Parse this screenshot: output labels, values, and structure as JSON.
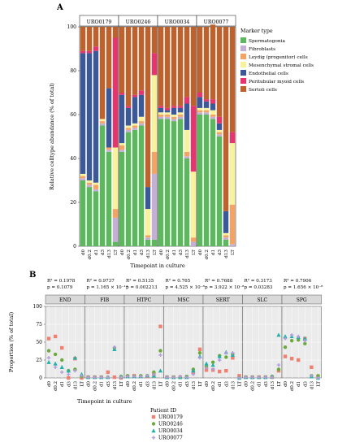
{
  "panel_a_label": "A",
  "panel_b_label": "B",
  "chart_data": [
    {
      "type": "stacked-bar",
      "xlabel": "Timepoint in culture",
      "ylabel": "Relative celltype abundance (% of total)",
      "ylim": [
        0,
        100
      ],
      "yticks": [
        "0",
        "20",
        "40",
        "60",
        "80",
        "100"
      ],
      "legend_title": "Marker type",
      "legend_position": "right",
      "facets": [
        "URO0179",
        "URO0246",
        "URO0034",
        "URO0077"
      ],
      "categories": [
        "d0",
        "d0.2",
        "d1",
        "d3",
        "d13",
        "LT"
      ],
      "series": [
        {
          "name": "Spermatogonia",
          "color": "#5cb85c",
          "values": [
            [
              30,
              27,
              25,
              55,
              43,
              2
            ],
            [
              43,
              52,
              53,
              55,
              3,
              3
            ],
            [
              58,
              58,
              57,
              58,
              40,
              0
            ],
            [
              60,
              60,
              58,
              50,
              3,
              0
            ]
          ]
        },
        {
          "name": "Fibroblasts",
          "color": "#c5b0d5",
          "values": [
            [
              1,
              1,
              1,
              1,
              1,
              11
            ],
            [
              1,
              1,
              1,
              1,
              1,
              30
            ],
            [
              1,
              1,
              1,
              1,
              1,
              2
            ],
            [
              1,
              1,
              1,
              1,
              1,
              1
            ]
          ]
        },
        {
          "name": "Leydig (progenitor) cells",
          "color": "#f4a460",
          "values": [
            [
              1,
              1,
              2,
              1,
              1,
              4
            ],
            [
              2,
              1,
              1,
              1,
              1,
              10
            ],
            [
              1,
              1,
              1,
              1,
              2,
              2
            ],
            [
              1,
              1,
              1,
              1,
              1,
              18
            ]
          ]
        },
        {
          "name": "Mesenchymal stromal cells",
          "color": "#f8f39a",
          "values": [
            [
              1,
              1,
              1,
              1,
              0,
              28
            ],
            [
              1,
              1,
              1,
              2,
              12,
              35
            ],
            [
              1,
              1,
              1,
              1,
              10,
              30
            ],
            [
              1,
              1,
              2,
              1,
              1,
              28
            ]
          ]
        },
        {
          "name": "Endothelial cells",
          "color": "#3b5998",
          "values": [
            [
              55,
              58,
              60,
              0,
              27,
              0
            ],
            [
              22,
              8,
              12,
              10,
              10,
              0
            ],
            [
              2,
              1,
              3,
              2,
              12,
              0
            ],
            [
              5,
              3,
              3,
              3,
              10,
              0
            ]
          ]
        },
        {
          "name": "Peritubular myoid cells",
          "color": "#e8336d",
          "values": [
            [
              1,
              1,
              2,
              0,
              0,
              50
            ],
            [
              1,
              1,
              1,
              2,
              0,
              10
            ],
            [
              1,
              1,
              1,
              1,
              3,
              30
            ],
            [
              2,
              1,
              2,
              3,
              0,
              5
            ]
          ]
        },
        {
          "name": "Sertoli cells",
          "color": "#c0612b",
          "values": [
            [
              11,
              11,
              9,
              42,
              28,
              5
            ],
            [
              30,
              36,
              31,
              29,
              73,
              12
            ],
            [
              36,
              37,
              36,
              36,
              32,
              36
            ],
            [
              30,
              33,
              34,
              41,
              84,
              48
            ]
          ]
        }
      ]
    },
    {
      "type": "scatter",
      "xlabel": "Timepoint in culture",
      "ylabel": "Proportion (% of total)",
      "ylim": [
        0,
        100
      ],
      "yticks": [
        "0",
        "25",
        "50",
        "75",
        "100"
      ],
      "categories": [
        "d0",
        "d0.2",
        "d1",
        "d3",
        "d13",
        "LT"
      ],
      "legend_title": "Patient ID",
      "legend_position": "bottom",
      "patients": [
        {
          "name": "URO0179",
          "color": "#f08070",
          "shape": "square"
        },
        {
          "name": "URO0246",
          "color": "#6aaa3a",
          "shape": "circle"
        },
        {
          "name": "URO0034",
          "color": "#20b2aa",
          "shape": "triangle"
        },
        {
          "name": "URO0077",
          "color": "#b39ddb",
          "shape": "cross"
        }
      ],
      "facets": [
        {
          "name": "END",
          "r2": "R² = 0.1978",
          "p": "p = 0.1079",
          "values": [
            [
              55,
              58,
              42,
              0,
              27,
              0
            ],
            [
              38,
              33,
              25,
              10,
              12,
              2
            ],
            [
              22,
              20,
              15,
              10,
              28,
              5
            ],
            [
              28,
              15,
              8,
              5,
              10,
              3
            ]
          ]
        },
        {
          "name": "FIB",
          "r2": "R² = 0.9737",
          "p": "p = 1.165 × 10⁻¹⁴",
          "values": [
            [
              1,
              1,
              1,
              8,
              1,
              0
            ],
            [
              1,
              1,
              1,
              1,
              42,
              2
            ],
            [
              1,
              1,
              1,
              1,
              40,
              2
            ],
            [
              1,
              1,
              1,
              1,
              43,
              1
            ]
          ]
        },
        {
          "name": "HTPC",
          "r2": "R² = 0.5135",
          "p": "p = 0.002213",
          "values": [
            [
              2,
              3,
              2,
              2,
              5,
              72
            ],
            [
              3,
              2,
              3,
              3,
              8,
              38
            ],
            [
              2,
              2,
              2,
              3,
              3,
              10
            ],
            [
              2,
              2,
              2,
              3,
              5,
              32
            ]
          ]
        },
        {
          "name": "MSC",
          "r2": "R² = 0.765",
          "p": "p = 4.525 × 10⁻⁸",
          "values": [
            [
              1,
              1,
              1,
              1,
              8,
              40
            ],
            [
              1,
              1,
              1,
              2,
              12,
              35
            ],
            [
              1,
              1,
              1,
              1,
              10,
              30
            ],
            [
              1,
              1,
              2,
              1,
              5,
              28
            ]
          ]
        },
        {
          "name": "SERT",
          "r2": "R² = 0.7688",
          "p": "p = 3.922 × 10⁻⁸",
          "values": [
            [
              11,
              11,
              9,
              10,
              28,
              3
            ],
            [
              16,
              22,
              31,
              29,
              33,
              0
            ],
            [
              20,
              18,
              30,
              36,
              32,
              0
            ],
            [
              14,
              12,
              25,
              35,
              35,
              0
            ]
          ]
        },
        {
          "name": "SLC",
          "r2": "R² = 0.3173",
          "p": "p = 0.03283",
          "values": [
            [
              1,
              1,
              1,
              1,
              1,
              10
            ],
            [
              1,
              1,
              1,
              1,
              2,
              12
            ],
            [
              1,
              1,
              1,
              1,
              2,
              60
            ],
            [
              1,
              1,
              1,
              1,
              1,
              18
            ]
          ]
        },
        {
          "name": "SPG",
          "r2": "R² = 0.7906",
          "p": "p = 1.656 × 10⁻⁸",
          "values": [
            [
              30,
              27,
              25,
              55,
              15,
              2
            ],
            [
              43,
              52,
              53,
              48,
              3,
              3
            ],
            [
              58,
              58,
              57,
              55,
              2,
              0
            ],
            [
              55,
              60,
              58,
              52,
              3,
              0
            ]
          ]
        }
      ]
    }
  ]
}
